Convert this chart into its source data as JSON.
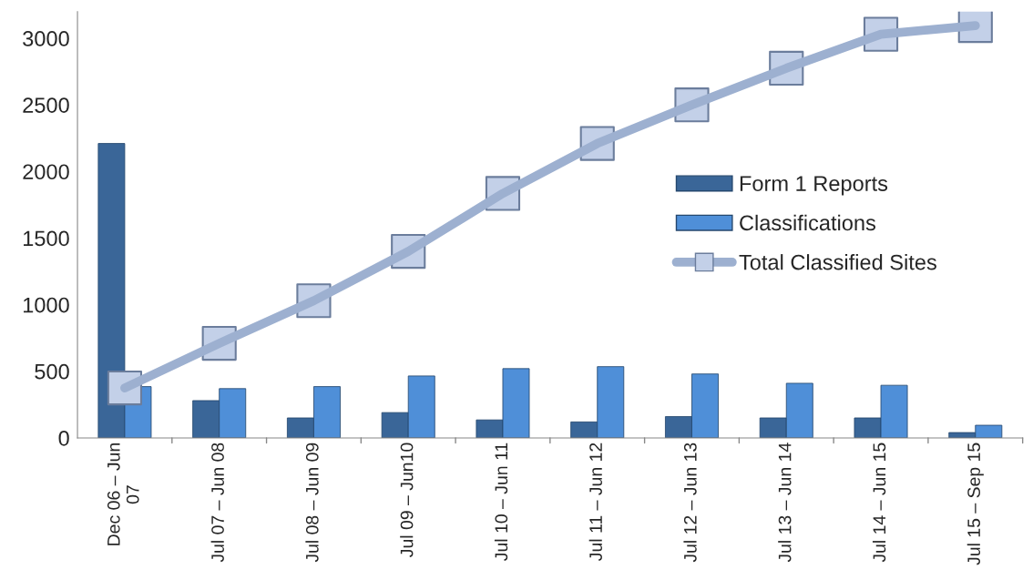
{
  "chart_data": {
    "type": "bar",
    "categories": [
      "Dec 06 – Jun\n07",
      "Jul 07 – Jun 08",
      "Jul 08 – Jun 09",
      "Jul 09 – Jun10",
      "Jul 10 – Jun 11",
      "Jul 11 – Jun 12",
      "Jul 12 – Jun 13",
      "Jul 13 – Jun 14",
      "Jul 14 – Jun 15",
      "Jul 15 – Sep 15"
    ],
    "series": [
      {
        "name": "Form 1 Reports",
        "color": "#3a6698",
        "values": [
          2210,
          280,
          150,
          190,
          135,
          120,
          160,
          150,
          150,
          40
        ]
      },
      {
        "name": "Classifications",
        "color": "#4f8fd8",
        "values": [
          385,
          370,
          385,
          465,
          520,
          535,
          480,
          410,
          395,
          95
        ]
      },
      {
        "name": "Total Classified Sites",
        "type": "line",
        "color": "#9db0d0",
        "marker": "square",
        "values": [
          375,
          710,
          1030,
          1400,
          1835,
          2210,
          2500,
          2775,
          3030,
          3095
        ]
      }
    ],
    "ylim": [
      0,
      3200
    ],
    "yticks": [
      0,
      500,
      1000,
      1500,
      2000,
      2500,
      3000
    ],
    "grid": false,
    "legend": "center right"
  }
}
